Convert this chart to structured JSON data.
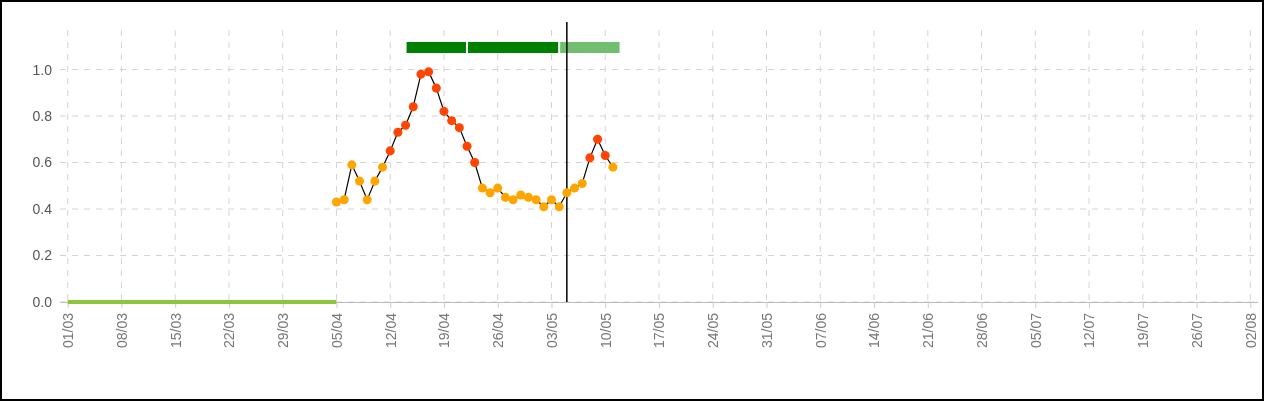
{
  "chart_data": {
    "type": "line",
    "xlim": [
      "--02-28",
      "--08-03"
    ],
    "xticks": [
      {
        "value": "--03-01",
        "label": "01/03"
      },
      {
        "value": "--03-08",
        "label": "08/03"
      },
      {
        "value": "--03-15",
        "label": "15/03"
      },
      {
        "value": "--03-22",
        "label": "22/03"
      },
      {
        "value": "--03-29",
        "label": "29/03"
      },
      {
        "value": "--04-05",
        "label": "05/04"
      },
      {
        "value": "--04-12",
        "label": "12/04"
      },
      {
        "value": "--04-19",
        "label": "19/04"
      },
      {
        "value": "--04-26",
        "label": "26/04"
      },
      {
        "value": "--05-03",
        "label": "03/05"
      },
      {
        "value": "--05-10",
        "label": "10/05"
      },
      {
        "value": "--05-17",
        "label": "17/05"
      },
      {
        "value": "--05-24",
        "label": "24/05"
      },
      {
        "value": "--05-31",
        "label": "31/05"
      },
      {
        "value": "--06-07",
        "label": "07/06"
      },
      {
        "value": "--06-14",
        "label": "14/06"
      },
      {
        "value": "--06-21",
        "label": "21/06"
      },
      {
        "value": "--06-28",
        "label": "28/06"
      },
      {
        "value": "--07-05",
        "label": "05/07"
      },
      {
        "value": "--07-12",
        "label": "12/07"
      },
      {
        "value": "--07-19",
        "label": "19/07"
      },
      {
        "value": "--07-26",
        "label": "26/07"
      },
      {
        "value": "--08-02",
        "label": "02/08"
      }
    ],
    "ylim": [
      0,
      1.17
    ],
    "yticks": [
      {
        "value": 0,
        "label": "0.0"
      },
      {
        "value": 0.2,
        "label": "0.2"
      },
      {
        "value": 0.4,
        "label": "0.4"
      },
      {
        "value": 0.6,
        "label": "0.6"
      },
      {
        "value": 0.8,
        "label": "0.8"
      },
      {
        "value": 1,
        "label": "1.0"
      }
    ],
    "grid": true,
    "series": [
      {
        "color": "#8cc63f",
        "marker": "none",
        "x": [
          "--03-01",
          "--04-05"
        ],
        "values": [
          0,
          0
        ]
      },
      {
        "color": "#000000",
        "marker": "circle",
        "x": [
          "--04-05",
          "--04-06",
          "--04-07",
          "--04-08",
          "--04-09",
          "--04-10",
          "--04-11",
          "--04-12",
          "--04-13",
          "--04-14",
          "--04-15",
          "--04-16",
          "--04-17",
          "--04-18",
          "--04-19",
          "--04-20",
          "--04-21",
          "--04-22",
          "--04-23",
          "--04-24",
          "--04-25",
          "--04-26",
          "--04-27",
          "--04-28",
          "--04-29",
          "--04-30",
          "--05-01",
          "--05-02",
          "--05-03",
          "--05-04",
          "--05-05",
          "--05-06",
          "--05-07",
          "--05-08",
          "--05-09",
          "--05-10",
          "--05-11"
        ],
        "values": [
          0.43,
          0.44,
          0.59,
          0.52,
          0.44,
          0.52,
          0.58,
          0.65,
          0.73,
          0.76,
          0.84,
          0.98,
          0.99,
          0.92,
          0.82,
          0.78,
          0.75,
          0.67,
          0.6,
          0.49,
          0.47,
          0.49,
          0.45,
          0.44,
          0.46,
          0.45,
          0.44,
          0.41,
          0.44,
          0.41,
          0.47,
          0.49,
          0.51,
          0.62,
          0.7,
          0.63,
          0.58
        ],
        "colors": [
          "#ffa500",
          "#ffa500",
          "#ffa500",
          "#ffa500",
          "#ffa500",
          "#ffa500",
          "#ffa500",
          "#ff4500",
          "#ff4500",
          "#ff4500",
          "#ff4500",
          "#ff4500",
          "#ff4500",
          "#ff4500",
          "#ff4500",
          "#ff4500",
          "#ff4500",
          "#ff4500",
          "#ff4500",
          "#ffa500",
          "#ffa500",
          "#ffa500",
          "#ffa500",
          "#ffa500",
          "#ffa500",
          "#ffa500",
          "#ffa500",
          "#ffa500",
          "#ffa500",
          "#ffa500",
          "#ffa500",
          "#ffa500",
          "#ffa500",
          "#ff4500",
          "#ff4500",
          "#ff4500",
          "#ffa500"
        ]
      }
    ],
    "ref_lines": [
      {
        "axis": "x",
        "value": "--05-05",
        "color": "#000000"
      }
    ],
    "bands": [
      {
        "axis": "x",
        "from": "--04-14",
        "to": "--04-22",
        "color": "#008000"
      },
      {
        "axis": "x",
        "from": "--04-22",
        "to": "--05-04",
        "color": "#008000"
      },
      {
        "axis": "x",
        "from": "--05-04",
        "to": "--05-12",
        "color": "#6fbf6f"
      }
    ]
  }
}
